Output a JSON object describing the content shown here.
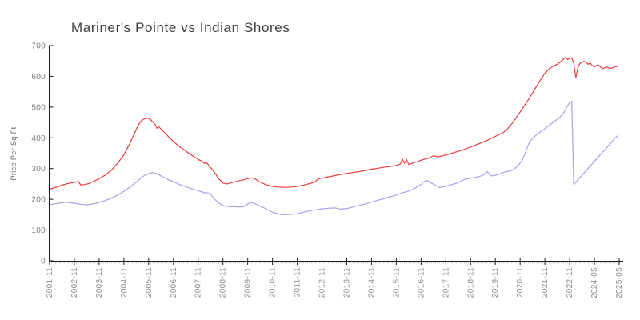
{
  "chart_data": {
    "type": "line",
    "title": "Mariner's Pointe vs Indian Shores",
    "ylabel": "Price Per Sq Ft",
    "ylim": [
      0,
      700
    ],
    "y_ticks": [
      0,
      100,
      200,
      300,
      400,
      500,
      600,
      700
    ],
    "x_index_max": 276,
    "x_ticks": {
      "indices": [
        0,
        12,
        24,
        36,
        48,
        60,
        72,
        84,
        96,
        108,
        120,
        132,
        144,
        156,
        168,
        180,
        192,
        204,
        216,
        228,
        240,
        252,
        264,
        276
      ],
      "labels": [
        "2001-11",
        "2002-11",
        "2003-11",
        "2004-11",
        "2005-11",
        "2006-11",
        "2007-11",
        "2008-11",
        "2009-11",
        "2010-11",
        "2011-11",
        "2012-11",
        "2013-11",
        "2014-11",
        "2015-11",
        "2016-11",
        "2017-11",
        "2018-11",
        "2019-11",
        "2020-11",
        "2021-11",
        "2022-11",
        "2024-05",
        "2025-05"
      ]
    },
    "grid": false,
    "legend": "none",
    "series": [
      {
        "name": "red",
        "color": "#ed3b3b",
        "points": [
          [
            0,
            233
          ],
          [
            2,
            237
          ],
          [
            4,
            241
          ],
          [
            6,
            246
          ],
          [
            8,
            250
          ],
          [
            10,
            253
          ],
          [
            12,
            255
          ],
          [
            14,
            258
          ],
          [
            15,
            247
          ],
          [
            17,
            248
          ],
          [
            19,
            251
          ],
          [
            21,
            257
          ],
          [
            24,
            267
          ],
          [
            27,
            279
          ],
          [
            30,
            295
          ],
          [
            33,
            317
          ],
          [
            36,
            345
          ],
          [
            39,
            383
          ],
          [
            41,
            413
          ],
          [
            43,
            441
          ],
          [
            44,
            452
          ],
          [
            45,
            458
          ],
          [
            46,
            462
          ],
          [
            47,
            464
          ],
          [
            48,
            463
          ],
          [
            49,
            459
          ],
          [
            50,
            451
          ],
          [
            51,
            445
          ],
          [
            52,
            431
          ],
          [
            53,
            436
          ],
          [
            54,
            428
          ],
          [
            56,
            415
          ],
          [
            58,
            401
          ],
          [
            60,
            388
          ],
          [
            63,
            371
          ],
          [
            66,
            357
          ],
          [
            69,
            343
          ],
          [
            72,
            330
          ],
          [
            74,
            323
          ],
          [
            75,
            317
          ],
          [
            76,
            319
          ],
          [
            78,
            304
          ],
          [
            80,
            287
          ],
          [
            82,
            267
          ],
          [
            84,
            253
          ],
          [
            86,
            250
          ],
          [
            88,
            254
          ],
          [
            90,
            257
          ],
          [
            93,
            262
          ],
          [
            96,
            267
          ],
          [
            98,
            270
          ],
          [
            100,
            265
          ],
          [
            102,
            256
          ],
          [
            105,
            247
          ],
          [
            108,
            242
          ],
          [
            111,
            240
          ],
          [
            114,
            239
          ],
          [
            117,
            240
          ],
          [
            120,
            242
          ],
          [
            123,
            246
          ],
          [
            126,
            251
          ],
          [
            128,
            255
          ],
          [
            129,
            259
          ],
          [
            130,
            266
          ],
          [
            132,
            269
          ],
          [
            135,
            273
          ],
          [
            138,
            277
          ],
          [
            141,
            281
          ],
          [
            144,
            284
          ],
          [
            147,
            287
          ],
          [
            150,
            290
          ],
          [
            153,
            294
          ],
          [
            156,
            298
          ],
          [
            159,
            301
          ],
          [
            162,
            304
          ],
          [
            165,
            307
          ],
          [
            168,
            310
          ],
          [
            170,
            315
          ],
          [
            171,
            331
          ],
          [
            172,
            317
          ],
          [
            173,
            329
          ],
          [
            174,
            313
          ],
          [
            176,
            318
          ],
          [
            178,
            322
          ],
          [
            180,
            327
          ],
          [
            182,
            331
          ],
          [
            184,
            334
          ],
          [
            186,
            342
          ],
          [
            188,
            338
          ],
          [
            190,
            341
          ],
          [
            193,
            346
          ],
          [
            196,
            352
          ],
          [
            199,
            358
          ],
          [
            202,
            365
          ],
          [
            204,
            370
          ],
          [
            207,
            378
          ],
          [
            210,
            386
          ],
          [
            213,
            395
          ],
          [
            216,
            405
          ],
          [
            218,
            411
          ],
          [
            220,
            418
          ],
          [
            222,
            430
          ],
          [
            224,
            446
          ],
          [
            226,
            464
          ],
          [
            228,
            484
          ],
          [
            230,
            504
          ],
          [
            232,
            524
          ],
          [
            234,
            546
          ],
          [
            236,
            568
          ],
          [
            238,
            590
          ],
          [
            239,
            600
          ],
          [
            240,
            610
          ],
          [
            241,
            617
          ],
          [
            242,
            624
          ],
          [
            243,
            629
          ],
          [
            244,
            633
          ],
          [
            245,
            636
          ],
          [
            246,
            639
          ],
          [
            247,
            644
          ],
          [
            248,
            650
          ],
          [
            249,
            656
          ],
          [
            250,
            661
          ],
          [
            251,
            655
          ],
          [
            252,
            658
          ],
          [
            253,
            661
          ],
          [
            254,
            642
          ],
          [
            255,
            596
          ],
          [
            256,
            628
          ],
          [
            257,
            642
          ],
          [
            258,
            646
          ],
          [
            259,
            649
          ],
          [
            260,
            645
          ],
          [
            261,
            639
          ],
          [
            262,
            643
          ],
          [
            263,
            635
          ],
          [
            264,
            630
          ],
          [
            265,
            635
          ],
          [
            266,
            637
          ],
          [
            267,
            630
          ],
          [
            268,
            625
          ],
          [
            269,
            628
          ],
          [
            270,
            631
          ],
          [
            271,
            627
          ],
          [
            272,
            626
          ],
          [
            273,
            629
          ],
          [
            274,
            631
          ],
          [
            275,
            632
          ]
        ]
      },
      {
        "name": "blue",
        "color": "#a3a3e8",
        "points": [
          [
            0,
            182
          ],
          [
            3,
            186
          ],
          [
            6,
            189
          ],
          [
            8,
            191
          ],
          [
            10,
            189
          ],
          [
            12,
            187
          ],
          [
            15,
            184
          ],
          [
            18,
            182
          ],
          [
            21,
            185
          ],
          [
            24,
            190
          ],
          [
            27,
            196
          ],
          [
            30,
            204
          ],
          [
            33,
            214
          ],
          [
            36,
            226
          ],
          [
            39,
            240
          ],
          [
            42,
            256
          ],
          [
            44,
            268
          ],
          [
            46,
            278
          ],
          [
            48,
            284
          ],
          [
            50,
            287
          ],
          [
            52,
            283
          ],
          [
            54,
            276
          ],
          [
            57,
            266
          ],
          [
            60,
            257
          ],
          [
            63,
            248
          ],
          [
            66,
            241
          ],
          [
            69,
            234
          ],
          [
            72,
            228
          ],
          [
            74,
            224
          ],
          [
            75,
            221
          ],
          [
            76,
            222
          ],
          [
            77,
            220
          ],
          [
            78,
            216
          ],
          [
            80,
            200
          ],
          [
            82,
            188
          ],
          [
            84,
            180
          ],
          [
            86,
            177
          ],
          [
            88,
            176
          ],
          [
            90,
            176
          ],
          [
            92,
            175
          ],
          [
            94,
            176
          ],
          [
            96,
            185
          ],
          [
            97,
            189
          ],
          [
            98,
            190
          ],
          [
            99,
            188
          ],
          [
            100,
            184
          ],
          [
            102,
            178
          ],
          [
            104,
            172
          ],
          [
            106,
            165
          ],
          [
            108,
            158
          ],
          [
            110,
            154
          ],
          [
            112,
            151
          ],
          [
            114,
            150
          ],
          [
            116,
            151
          ],
          [
            118,
            152
          ],
          [
            120,
            153
          ],
          [
            123,
            158
          ],
          [
            126,
            163
          ],
          [
            129,
            166
          ],
          [
            132,
            169
          ],
          [
            135,
            171
          ],
          [
            138,
            172
          ],
          [
            140,
            170
          ],
          [
            141,
            168
          ],
          [
            142,
            169
          ],
          [
            144,
            170
          ],
          [
            147,
            175
          ],
          [
            150,
            180
          ],
          [
            153,
            185
          ],
          [
            156,
            191
          ],
          [
            159,
            197
          ],
          [
            162,
            202
          ],
          [
            165,
            208
          ],
          [
            168,
            214
          ],
          [
            171,
            221
          ],
          [
            174,
            227
          ],
          [
            176,
            232
          ],
          [
            178,
            240
          ],
          [
            180,
            248
          ],
          [
            181,
            255
          ],
          [
            182,
            260
          ],
          [
            183,
            261
          ],
          [
            185,
            253
          ],
          [
            187,
            246
          ],
          [
            189,
            238
          ],
          [
            191,
            241
          ],
          [
            193,
            244
          ],
          [
            195,
            248
          ],
          [
            197,
            252
          ],
          [
            199,
            258
          ],
          [
            201,
            264
          ],
          [
            204,
            269
          ],
          [
            206,
            271
          ],
          [
            208,
            274
          ],
          [
            210,
            278
          ],
          [
            211,
            284
          ],
          [
            212,
            290
          ],
          [
            213,
            283
          ],
          [
            214,
            276
          ],
          [
            216,
            278
          ],
          [
            218,
            282
          ],
          [
            220,
            288
          ],
          [
            222,
            291
          ],
          [
            224,
            294
          ],
          [
            226,
            303
          ],
          [
            228,
            318
          ],
          [
            229,
            328
          ],
          [
            230,
            342
          ],
          [
            231,
            360
          ],
          [
            232,
            378
          ],
          [
            233,
            390
          ],
          [
            234,
            398
          ],
          [
            236,
            410
          ],
          [
            238,
            420
          ],
          [
            240,
            430
          ],
          [
            242,
            440
          ],
          [
            244,
            450
          ],
          [
            246,
            460
          ],
          [
            248,
            472
          ],
          [
            249,
            480
          ],
          [
            250,
            492
          ],
          [
            251,
            504
          ],
          [
            252,
            514
          ],
          [
            253,
            519
          ],
          [
            254,
            248
          ],
          [
            275,
            406
          ]
        ]
      }
    ]
  }
}
